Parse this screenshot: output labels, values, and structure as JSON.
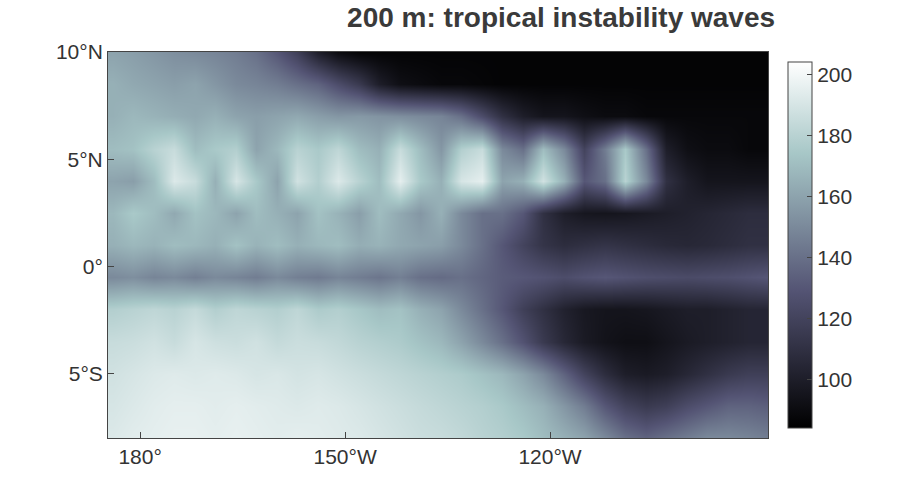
{
  "chart_data": {
    "type": "heatmap",
    "title": "200 m: tropical instability waves",
    "x": [
      176,
      179,
      182,
      185,
      188,
      191,
      194,
      197,
      200,
      203,
      206,
      209,
      212,
      215,
      218,
      221,
      224,
      227,
      230,
      233,
      236,
      239,
      242,
      245,
      248,
      251,
      254,
      257,
      260,
      263,
      266,
      269,
      272
    ],
    "y": [
      -8,
      -6.5,
      -5,
      -3.5,
      -2,
      -0.5,
      1,
      2.5,
      4,
      5.5,
      7,
      8.5,
      10
    ],
    "values": [
      [
        192,
        194,
        195,
        196,
        196,
        195,
        196,
        195,
        194,
        195,
        194,
        193,
        192,
        190,
        188,
        186,
        185,
        183,
        180,
        178,
        175,
        170,
        165,
        160,
        150,
        140,
        135,
        140,
        145,
        150,
        150,
        148,
        145
      ],
      [
        190,
        192,
        194,
        195,
        195,
        194,
        195,
        194,
        193,
        192,
        193,
        192,
        190,
        188,
        186,
        184,
        182,
        180,
        178,
        175,
        170,
        165,
        155,
        145,
        130,
        120,
        115,
        118,
        125,
        130,
        135,
        135,
        133
      ],
      [
        188,
        190,
        192,
        193,
        192,
        193,
        192,
        190,
        191,
        189,
        190,
        188,
        186,
        184,
        182,
        180,
        178,
        176,
        172,
        168,
        160,
        150,
        135,
        120,
        108,
        100,
        98,
        100,
        105,
        110,
        115,
        118,
        118
      ],
      [
        185,
        186,
        188,
        185,
        190,
        187,
        186,
        188,
        184,
        186,
        185,
        183,
        180,
        178,
        176,
        172,
        168,
        160,
        150,
        140,
        128,
        115,
        105,
        98,
        94,
        92,
        92,
        95,
        98,
        100,
        102,
        104,
        104
      ],
      [
        178,
        180,
        182,
        180,
        184,
        178,
        182,
        180,
        178,
        182,
        176,
        178,
        174,
        170,
        172,
        165,
        160,
        150,
        140,
        130,
        118,
        110,
        102,
        97,
        95,
        95,
        96,
        98,
        100,
        100,
        102,
        104,
        104
      ],
      [
        150,
        152,
        148,
        150,
        146,
        150,
        148,
        145,
        150,
        146,
        144,
        148,
        145,
        142,
        146,
        140,
        138,
        140,
        136,
        132,
        130,
        128,
        125,
        128,
        130,
        128,
        126,
        125,
        124,
        125,
        126,
        128,
        130
      ],
      [
        165,
        168,
        166,
        170,
        168,
        165,
        172,
        166,
        170,
        165,
        168,
        170,
        164,
        166,
        162,
        160,
        158,
        150,
        140,
        130,
        120,
        112,
        108,
        110,
        112,
        110,
        108,
        106,
        105,
        106,
        108,
        110,
        110
      ],
      [
        168,
        175,
        170,
        162,
        172,
        168,
        160,
        170,
        165,
        160,
        172,
        166,
        158,
        170,
        162,
        155,
        165,
        150,
        140,
        140,
        130,
        110,
        100,
        96,
        95,
        96,
        98,
        100,
        102,
        104,
        106,
        108,
        108
      ],
      [
        160,
        158,
        170,
        192,
        185,
        165,
        190,
        175,
        160,
        188,
        178,
        192,
        180,
        170,
        195,
        175,
        165,
        190,
        195,
        160,
        165,
        188,
        165,
        130,
        140,
        180,
        150,
        110,
        100,
        95,
        95,
        95,
        95
      ],
      [
        170,
        172,
        180,
        185,
        170,
        175,
        178,
        160,
        168,
        180,
        175,
        182,
        170,
        165,
        185,
        170,
        155,
        178,
        185,
        150,
        140,
        170,
        150,
        120,
        145,
        175,
        140,
        100,
        92,
        90,
        90,
        88,
        88
      ],
      [
        165,
        168,
        166,
        164,
        162,
        165,
        160,
        158,
        160,
        162,
        158,
        155,
        156,
        154,
        152,
        150,
        148,
        140,
        125,
        110,
        100,
        95,
        95,
        92,
        90,
        90,
        88,
        88,
        88,
        88,
        88,
        88,
        88
      ],
      [
        165,
        162,
        160,
        158,
        160,
        155,
        150,
        148,
        145,
        140,
        135,
        125,
        115,
        100,
        92,
        90,
        88,
        88,
        87,
        86,
        86,
        86,
        86,
        86,
        86,
        86,
        86,
        86,
        86,
        86,
        86,
        86,
        86
      ],
      [
        160,
        158,
        155,
        152,
        150,
        148,
        145,
        140,
        130,
        118,
        100,
        90,
        86,
        86,
        86,
        86,
        86,
        86,
        86,
        86,
        86,
        86,
        86,
        86,
        86,
        86,
        86,
        86,
        86,
        86,
        86,
        86,
        86
      ]
    ],
    "xlim": [
      175.3,
      271.9
    ],
    "ylim": [
      -8,
      10
    ],
    "xticks": [
      {
        "value": 180,
        "label": "180°"
      },
      {
        "value": 210,
        "label": "150°W"
      },
      {
        "value": 240,
        "label": "120°W"
      }
    ],
    "yticks": [
      {
        "value": -5,
        "label": "5°S"
      },
      {
        "value": 0,
        "label": "0°"
      },
      {
        "value": 5,
        "label": "5°N"
      },
      {
        "value": 10,
        "label": "10°N"
      }
    ],
    "colorbar_range": [
      84,
      204
    ],
    "colorbar_ticks": [
      100,
      120,
      140,
      160,
      180,
      200
    ],
    "grid": false
  }
}
